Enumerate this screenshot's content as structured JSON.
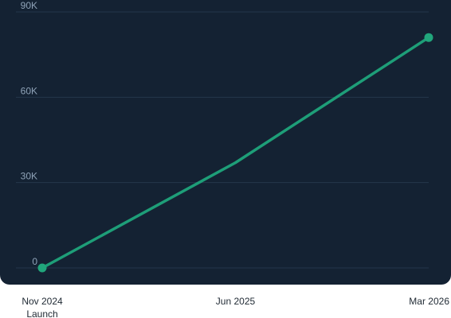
{
  "chart_data": {
    "type": "line",
    "title": "",
    "xlabel": "",
    "ylabel": "",
    "x": [
      "Nov 2024",
      "Jun 2025",
      "Mar 2026"
    ],
    "y": [
      0,
      37000,
      81000
    ],
    "ylim": [
      0,
      90000
    ],
    "yticks": [
      0,
      30000,
      60000,
      90000
    ],
    "ytick_labels": [
      "0",
      "30K",
      "60K",
      "90K"
    ],
    "xtick_labels": [
      "Nov 2024",
      "Jun 2025",
      "Mar 2026"
    ],
    "annotations": [
      {
        "x": "Nov 2024",
        "text": "Launch"
      }
    ],
    "grid": true,
    "colors": {
      "background": "#142233",
      "grid": "#24374b",
      "line": "#1e9e78",
      "marker": "#21a67c",
      "ytick_text": "#8fa3b8",
      "xtick_text": "#1f2933"
    }
  }
}
